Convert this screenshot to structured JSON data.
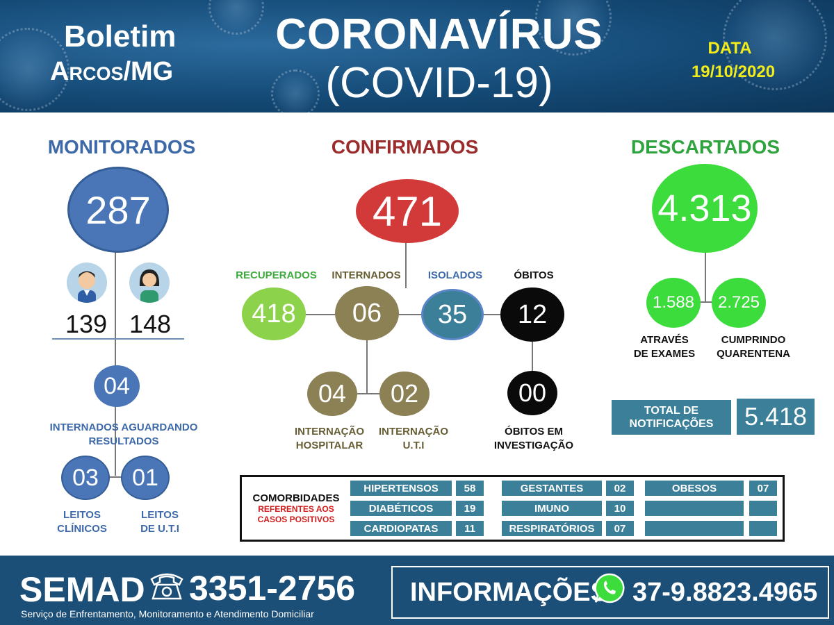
{
  "header": {
    "boletim": "Boletim",
    "city": "Arcos/MG",
    "title_line1": "CORONAVÍRUS",
    "title_line2": "(COVID-19)",
    "date_label": "DATA",
    "date_value": "19/10/2020"
  },
  "monitorados": {
    "title": "MONITORADOS",
    "total": "287",
    "male_count": "139",
    "female_count": "148",
    "internados_aguardando": "04",
    "internados_label": "INTERNADOS AGUARDANDO",
    "resultados_label": "RESULTADOS",
    "leitos_clinicos": "03",
    "leitos_uti": "01",
    "leitos_clinicos_label_1": "LEITOS",
    "leitos_clinicos_label_2": "CLÍNICOS",
    "leitos_uti_label_1": "LEITOS",
    "leitos_uti_label_2": "DE U.T.I"
  },
  "confirmados": {
    "title": "CONFIRMADOS",
    "total": "471",
    "recuperados_label": "RECUPERADOS",
    "recuperados": "418",
    "internados_label": "INTERNADOS",
    "internados": "06",
    "isolados_label": "ISOLADOS",
    "isolados": "35",
    "obitos_label": "ÓBITOS",
    "obitos": "12",
    "internacao_hospitalar": "04",
    "internacao_uti": "02",
    "internacao_hospitalar_label_1": "INTERNAÇÃO",
    "internacao_hospitalar_label_2": "HOSPITALAR",
    "internacao_uti_label_1": "INTERNAÇÃO",
    "internacao_uti_label_2": "U.T.I",
    "obitos_investigacao": "00",
    "obitos_investigacao_label_1": "ÓBITOS EM",
    "obitos_investigacao_label_2": "INVESTIGAÇÃO"
  },
  "descartados": {
    "title": "DESCARTADOS",
    "total": "4.313",
    "exames": "1.588",
    "quarentena": "2.725",
    "exames_label_1": "ATRAVÉS",
    "exames_label_2": "DE EXAMES",
    "quarentena_label_1": "CUMPRINDO",
    "quarentena_label_2": "QUARENTENA",
    "total_notificacoes_label_1": "TOTAL DE",
    "total_notificacoes_label_2": "NOTIFICAÇÕES",
    "total_notificacoes": "5.418"
  },
  "comorbidades": {
    "title": "COMORBIDADES",
    "subtitle_1": "REFERENTES AOS",
    "subtitle_2": "CASOS POSITIVOS",
    "col1": [
      {
        "label": "HIPERTENSOS",
        "value": "58"
      },
      {
        "label": "DIABÉTICOS",
        "value": "19"
      },
      {
        "label": "CARDIOPATAS",
        "value": "11"
      }
    ],
    "col2": [
      {
        "label": "GESTANTES",
        "value": "02"
      },
      {
        "label": "IMUNO",
        "value": "10"
      },
      {
        "label": "RESPIRATÓRIOS",
        "value": "07"
      }
    ],
    "col3": [
      {
        "label": "OBESOS",
        "value": "07"
      },
      {
        "label": "",
        "value": ""
      },
      {
        "label": "",
        "value": ""
      }
    ]
  },
  "footer": {
    "semad": "SEMAD",
    "semad_phone": "3351-2756",
    "semad_sub": "Serviço de Enfrentamento, Monitoramento e Atendimento Domiciliar",
    "info_label": "INFORMAÇÕES",
    "info_phone": "37-9.8823.4965"
  },
  "colors": {
    "blue": "#4a76b8",
    "red": "#d23a3a",
    "green": "#3ddc3d",
    "light_green": "#8cd24a",
    "olive": "#8c8055",
    "teal": "#3b7f99",
    "header_blue": "#144a76"
  },
  "icons": [
    "male-avatar-icon",
    "female-avatar-icon",
    "phone-icon",
    "whatsapp-icon"
  ]
}
